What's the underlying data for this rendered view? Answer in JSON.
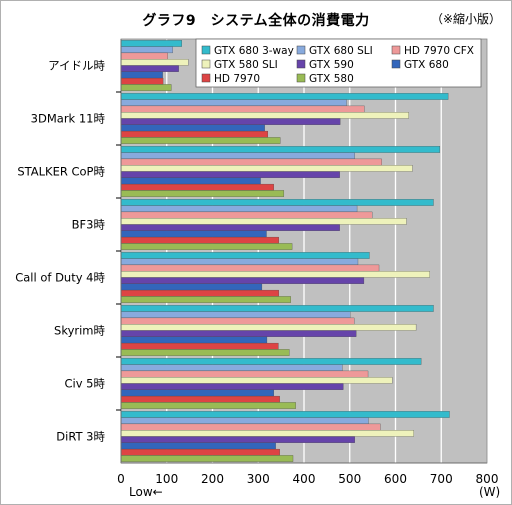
{
  "header": {
    "title": "グラフ9　システム全体の消費電力",
    "note": "（※縮小版）"
  },
  "colors": {
    "plot_bg": "#c0c0c0",
    "grid": "#ffffff",
    "series": [
      "#33bbcc",
      "#88aadd",
      "#ee9999",
      "#eef2bb",
      "#6644aa",
      "#3366bb",
      "#dd4444",
      "#99bb55"
    ]
  },
  "chart_data": {
    "type": "bar",
    "orientation": "horizontal",
    "categories": [
      "アイドル時",
      "3DMark 11時",
      "STALKER  CoP時",
      "BF3時",
      "Call of Duty 4時",
      "Skyrim時",
      "Civ 5時",
      "DiRT 3時"
    ],
    "series": [
      {
        "name": "GTX 680 3-way",
        "values": [
          133,
          715,
          697,
          683,
          543,
          683,
          656,
          718
        ]
      },
      {
        "name": "GTX 680 SLI",
        "values": [
          113,
          493,
          511,
          516,
          518,
          501,
          484,
          541
        ]
      },
      {
        "name": "HD 7970 CFX",
        "values": [
          102,
          532,
          570,
          549,
          564,
          510,
          540,
          567
        ]
      },
      {
        "name": "GTX 580 SLI",
        "values": [
          147,
          629,
          637,
          624,
          675,
          645,
          593,
          640
        ]
      },
      {
        "name": "GTX 590",
        "values": [
          126,
          479,
          478,
          478,
          531,
          514,
          486,
          511
        ]
      },
      {
        "name": "GTX 680",
        "values": [
          91,
          314,
          305,
          318,
          308,
          319,
          334,
          338
        ]
      },
      {
        "name": "HD 7970",
        "values": [
          92,
          321,
          334,
          345,
          345,
          344,
          347,
          347
        ]
      },
      {
        "name": "GTX 580",
        "values": [
          110,
          348,
          356,
          374,
          371,
          368,
          382,
          376
        ]
      }
    ],
    "x_ticks": [
      "0",
      "100",
      "200",
      "300",
      "400",
      "500",
      "600",
      "700",
      "800"
    ],
    "xlim": [
      0,
      800
    ],
    "xlabel": "(W)",
    "direction_label": "Low←",
    "grid": true,
    "legend_position": "top-right"
  }
}
